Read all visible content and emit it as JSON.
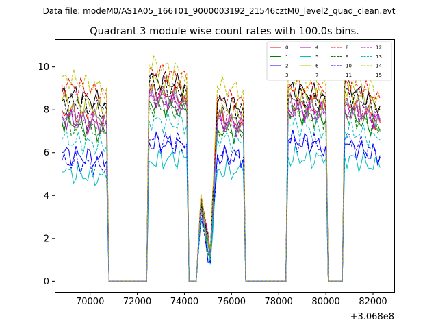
{
  "chart_data": {
    "type": "line",
    "suptitle": "Data file: modeM0/AS1A05_166T01_9000003192_21546cztM0_level2_quad_clean.evt",
    "title": "Quadrant 3 module wise count rates with 100.0s bins.",
    "xlabel": "",
    "ylabel": "",
    "x_offset_label": "+3.068e8",
    "xlim": [
      68500,
      82900
    ],
    "ylim": [
      -0.5,
      11.3
    ],
    "xticks": [
      70000,
      72000,
      74000,
      76000,
      78000,
      80000,
      82000
    ],
    "yticks": [
      0,
      2,
      4,
      6,
      8,
      10
    ],
    "legend_position": "upper-right",
    "legend_columns": 4,
    "x": [
      68800,
      70700,
      70800,
      72400,
      72500,
      74100,
      74200,
      74500,
      74700,
      75100,
      75400,
      76500,
      76600,
      78300,
      78400,
      80000,
      80100,
      80200,
      80700,
      80800,
      82300
    ],
    "series": [
      {
        "name": "0",
        "color": "#ff0000",
        "dash": "solid",
        "values": [
          8.0,
          7.4,
          0,
          0,
          8.9,
          8.5,
          0,
          0,
          3.7,
          1.2,
          7.6,
          7.3,
          0,
          0,
          8.4,
          8.0,
          0,
          0,
          0,
          8.5,
          7.4
        ]
      },
      {
        "name": "1",
        "color": "#008000",
        "dash": "solid",
        "values": [
          7.5,
          6.9,
          0,
          0,
          8.4,
          7.9,
          0,
          0,
          3.5,
          1.1,
          7.1,
          6.9,
          0,
          0,
          7.9,
          7.5,
          0,
          0,
          0,
          7.9,
          7.0
        ]
      },
      {
        "name": "2",
        "color": "#0000ff",
        "dash": "solid",
        "values": [
          6.0,
          5.6,
          0,
          0,
          6.5,
          6.3,
          0,
          0,
          3.1,
          0.9,
          5.9,
          5.7,
          0,
          0,
          6.6,
          6.3,
          0,
          0,
          0,
          6.4,
          5.8
        ]
      },
      {
        "name": "3",
        "color": "#000000",
        "dash": "solid",
        "values": [
          8.8,
          8.3,
          0,
          0,
          9.5,
          9.1,
          0,
          0,
          3.9,
          1.4,
          8.4,
          8.1,
          0,
          0,
          9.0,
          8.6,
          0,
          0,
          0,
          9.2,
          8.2
        ]
      },
      {
        "name": "4",
        "color": "#bf00bf",
        "dash": "solid",
        "values": [
          7.6,
          7.2,
          0,
          0,
          8.7,
          8.2,
          0,
          0,
          3.6,
          1.2,
          7.5,
          7.2,
          0,
          0,
          8.1,
          7.8,
          0,
          0,
          0,
          8.2,
          7.5
        ]
      },
      {
        "name": "5",
        "color": "#00bfbf",
        "dash": "solid",
        "values": [
          5.1,
          4.8,
          0,
          0,
          5.6,
          5.8,
          0,
          0,
          2.9,
          0.8,
          5.2,
          5.1,
          0,
          0,
          5.8,
          5.7,
          0,
          0,
          0,
          5.8,
          5.3
        ]
      },
      {
        "name": "6",
        "color": "#bfbf00",
        "dash": "solid",
        "values": [
          8.4,
          8.0,
          0,
          0,
          9.3,
          8.9,
          0,
          0,
          3.8,
          1.3,
          8.0,
          7.8,
          0,
          0,
          8.8,
          8.4,
          0,
          0,
          0,
          8.9,
          8.0
        ]
      },
      {
        "name": "7",
        "color": "#808080",
        "dash": "solid",
        "values": [
          7.9,
          7.5,
          0,
          0,
          8.8,
          8.4,
          0,
          0,
          3.7,
          1.2,
          7.6,
          7.4,
          0,
          0,
          8.3,
          7.9,
          0,
          0,
          0,
          8.3,
          7.6
        ]
      },
      {
        "name": "8",
        "color": "#ff0000",
        "dash": "dashed",
        "values": [
          9.2,
          8.7,
          0,
          0,
          9.9,
          9.4,
          0,
          0,
          4.0,
          1.4,
          8.6,
          8.4,
          0,
          0,
          9.2,
          8.8,
          0,
          0,
          0,
          9.4,
          8.5
        ]
      },
      {
        "name": "9",
        "color": "#008000",
        "dash": "dashed",
        "values": [
          7.3,
          6.9,
          0,
          0,
          8.2,
          7.9,
          0,
          0,
          3.5,
          1.1,
          7.1,
          6.9,
          0,
          0,
          7.9,
          7.6,
          0,
          0,
          0,
          7.9,
          7.1
        ]
      },
      {
        "name": "10",
        "color": "#0000ff",
        "dash": "dashed",
        "values": [
          5.6,
          5.3,
          0,
          0,
          6.6,
          6.4,
          0,
          0,
          3.0,
          0.9,
          5.9,
          5.8,
          0,
          0,
          6.6,
          6.3,
          0,
          0,
          0,
          6.6,
          5.9
        ]
      },
      {
        "name": "11",
        "color": "#000000",
        "dash": "dashed",
        "values": [
          8.4,
          8.0,
          0,
          0,
          9.2,
          8.8,
          0,
          0,
          3.8,
          1.3,
          8.2,
          8.0,
          0,
          0,
          8.7,
          8.4,
          0,
          0,
          0,
          8.8,
          8.0
        ]
      },
      {
        "name": "12",
        "color": "#bf00bf",
        "dash": "dashed",
        "values": [
          7.7,
          7.3,
          0,
          0,
          8.6,
          8.2,
          0,
          0,
          3.6,
          1.2,
          7.5,
          7.3,
          0,
          0,
          8.1,
          7.8,
          0,
          0,
          0,
          8.1,
          7.5
        ]
      },
      {
        "name": "13",
        "color": "#00bfbf",
        "dash": "dashed",
        "values": [
          6.6,
          6.3,
          0,
          0,
          7.5,
          7.3,
          0,
          0,
          3.3,
          1.0,
          6.7,
          6.5,
          0,
          0,
          7.3,
          7.0,
          0,
          0,
          0,
          7.1,
          6.6
        ]
      },
      {
        "name": "14",
        "color": "#bfbf00",
        "dash": "dashed",
        "values": [
          9.5,
          9.0,
          0,
          0,
          10.1,
          9.7,
          0,
          0,
          4.1,
          1.5,
          9.1,
          8.9,
          0,
          0,
          9.6,
          9.1,
          0,
          0,
          0,
          9.7,
          8.7
        ]
      },
      {
        "name": "15",
        "color": "#8080bf",
        "dash": "dashed",
        "values": [
          7.8,
          7.4,
          0,
          0,
          8.7,
          8.3,
          0,
          0,
          3.6,
          1.2,
          7.5,
          7.3,
          0,
          0,
          8.2,
          7.8,
          0,
          0,
          0,
          8.2,
          7.5
        ]
      }
    ]
  }
}
